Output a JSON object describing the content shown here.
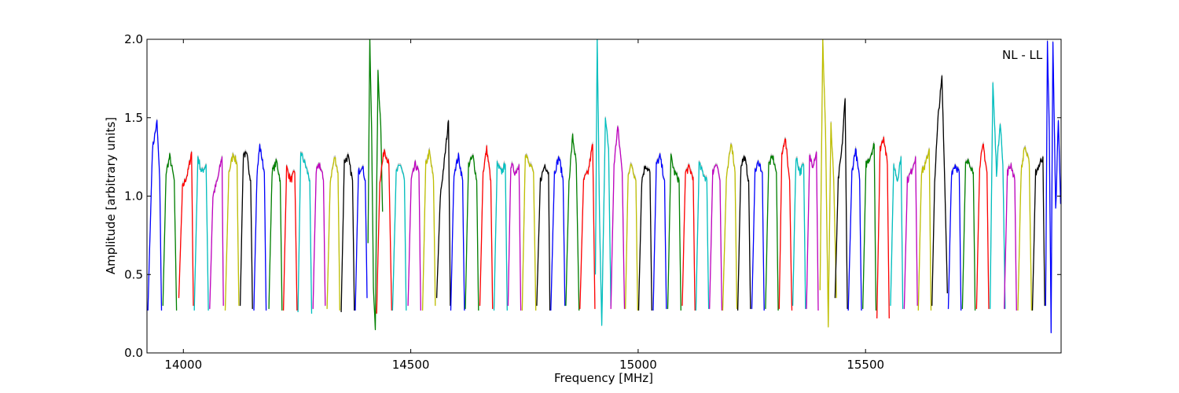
{
  "chart_data": {
    "type": "line",
    "title": "",
    "xlabel": "Frequency [MHz]",
    "ylabel": "Amplitude [arbitrary units]",
    "xlim": [
      13920,
      15930
    ],
    "ylim": [
      0.0,
      2.0
    ],
    "xticks": [
      14000,
      14500,
      15000,
      15500
    ],
    "yticks": [
      0.0,
      0.5,
      1.0,
      1.5,
      2.0
    ],
    "ytick_labels": [
      "0.0",
      "0.5",
      "1.0",
      "1.5",
      "2.0"
    ],
    "annotation": "NL - LL",
    "grid": false,
    "legend": "none",
    "subband_width_mhz": 31.25,
    "color_cycle": [
      "#0000ff",
      "#008000",
      "#ff0000",
      "#00bfbf",
      "#bf00bf",
      "#bfbf00",
      "#000000"
    ],
    "shadow_color": "#bbbbbb",
    "series": [
      {
        "color_index": 0,
        "x": [
          13922,
          13932,
          13942,
          13948,
          13952
        ],
        "y": [
          0.27,
          1.3,
          1.47,
          1.1,
          0.27
        ]
      },
      {
        "color_index": 1,
        "x": [
          13955,
          13962,
          13970,
          13980,
          13985
        ],
        "y": [
          0.3,
          1.15,
          1.25,
          1.1,
          0.27
        ]
      },
      {
        "color_index": 2,
        "x": [
          13990,
          13998,
          14010,
          14018,
          14022
        ],
        "y": [
          0.35,
          1.05,
          1.15,
          1.28,
          0.3
        ]
      },
      {
        "color_index": 3,
        "x": [
          14024,
          14032,
          14040,
          14050,
          14055
        ],
        "y": [
          0.27,
          1.25,
          1.15,
          1.2,
          0.27
        ]
      },
      {
        "color_index": 4,
        "x": [
          14058,
          14065,
          14075,
          14085,
          14088
        ],
        "y": [
          0.28,
          1.0,
          1.1,
          1.25,
          0.3
        ]
      },
      {
        "color_index": 5,
        "x": [
          14092,
          14100,
          14110,
          14118,
          14122
        ],
        "y": [
          0.27,
          1.15,
          1.27,
          1.2,
          0.3
        ]
      },
      {
        "color_index": 6,
        "x": [
          14125,
          14132,
          14140,
          14148,
          14152
        ],
        "y": [
          0.3,
          1.28,
          1.25,
          1.1,
          0.28
        ]
      },
      {
        "color_index": 0,
        "x": [
          14155,
          14162,
          14168,
          14178,
          14182
        ],
        "y": [
          0.27,
          1.15,
          1.32,
          1.15,
          0.27
        ]
      },
      {
        "color_index": 1,
        "x": [
          14188,
          14195,
          14205,
          14213,
          14217
        ],
        "y": [
          0.28,
          1.15,
          1.22,
          1.1,
          0.27
        ]
      },
      {
        "color_index": 2,
        "x": [
          14220,
          14227,
          14236,
          14245,
          14250
        ],
        "y": [
          0.27,
          1.18,
          1.1,
          1.15,
          0.27
        ]
      },
      {
        "color_index": 3,
        "x": [
          14252,
          14258,
          14268,
          14278,
          14282
        ],
        "y": [
          0.26,
          1.28,
          1.2,
          1.1,
          0.25
        ]
      },
      {
        "color_index": 4,
        "x": [
          14285,
          14292,
          14300,
          14308,
          14312
        ],
        "y": [
          0.28,
          1.15,
          1.2,
          1.1,
          0.3
        ]
      },
      {
        "color_index": 5,
        "x": [
          14316,
          14323,
          14333,
          14340,
          14344
        ],
        "y": [
          0.28,
          1.1,
          1.25,
          1.15,
          0.27
        ]
      },
      {
        "color_index": 6,
        "x": [
          14347,
          14354,
          14362,
          14372,
          14376
        ],
        "y": [
          0.26,
          1.22,
          1.25,
          1.1,
          0.27
        ]
      },
      {
        "color_index": 0,
        "x": [
          14378,
          14385,
          14393,
          14400,
          14404
        ],
        "y": [
          0.27,
          1.15,
          1.2,
          1.1,
          0.35
        ]
      },
      {
        "color_index": 1,
        "x": [
          14406,
          14410,
          14414,
          14418,
          14422,
          14428,
          14434,
          14438
        ],
        "y": [
          0.7,
          2.0,
          1.4,
          0.4,
          0.17,
          1.78,
          1.45,
          0.9
        ]
      },
      {
        "color_index": 2,
        "x": [
          14425,
          14432,
          14442,
          14452,
          14458
        ],
        "y": [
          0.25,
          1.1,
          1.3,
          1.2,
          0.27
        ]
      },
      {
        "color_index": 3,
        "x": [
          14460,
          14468,
          14478,
          14486,
          14490
        ],
        "y": [
          0.27,
          1.15,
          1.2,
          1.1,
          0.27
        ]
      },
      {
        "color_index": 4,
        "x": [
          14494,
          14501,
          14510,
          14518,
          14522
        ],
        "y": [
          0.3,
          1.1,
          1.2,
          1.15,
          0.27
        ]
      },
      {
        "color_index": 5,
        "x": [
          14526,
          14533,
          14541,
          14550,
          14554
        ],
        "y": [
          0.27,
          1.2,
          1.28,
          1.1,
          0.3
        ]
      },
      {
        "color_index": 6,
        "x": [
          14557,
          14565,
          14575,
          14583,
          14587
        ],
        "y": [
          0.35,
          1.0,
          1.25,
          1.48,
          0.3
        ]
      },
      {
        "color_index": 0,
        "x": [
          14588,
          14595,
          14605,
          14614,
          14618
        ],
        "y": [
          0.27,
          1.15,
          1.25,
          1.1,
          0.27
        ]
      },
      {
        "color_index": 1,
        "x": [
          14620,
          14627,
          14637,
          14645,
          14649
        ],
        "y": [
          0.28,
          1.2,
          1.25,
          1.1,
          0.27
        ]
      },
      {
        "color_index": 2,
        "x": [
          14652,
          14659,
          14667,
          14676,
          14680
        ],
        "y": [
          0.3,
          1.15,
          1.3,
          1.1,
          0.28
        ]
      },
      {
        "color_index": 3,
        "x": [
          14683,
          14690,
          14699,
          14708,
          14712
        ],
        "y": [
          0.27,
          1.2,
          1.15,
          1.2,
          0.27
        ]
      },
      {
        "color_index": 4,
        "x": [
          14714,
          14720,
          14730,
          14738,
          14742
        ],
        "y": [
          0.3,
          1.2,
          1.15,
          1.2,
          0.27
        ]
      },
      {
        "color_index": 5,
        "x": [
          14745,
          14752,
          14760,
          14770,
          14775
        ],
        "y": [
          0.27,
          1.28,
          1.2,
          1.15,
          0.27
        ]
      },
      {
        "color_index": 6,
        "x": [
          14777,
          14785,
          14795,
          14803,
          14806
        ],
        "y": [
          0.3,
          1.1,
          1.2,
          1.15,
          0.27
        ]
      },
      {
        "color_index": 0,
        "x": [
          14808,
          14816,
          14826,
          14835,
          14839
        ],
        "y": [
          0.27,
          1.15,
          1.25,
          1.1,
          0.3
        ]
      },
      {
        "color_index": 1,
        "x": [
          14841,
          14848,
          14856,
          14864,
          14870
        ],
        "y": [
          0.3,
          1.1,
          1.38,
          1.2,
          0.27
        ]
      },
      {
        "color_index": 2,
        "x": [
          14872,
          14880,
          14890,
          14900,
          14905
        ],
        "y": [
          0.28,
          1.1,
          1.15,
          1.33,
          0.28
        ]
      },
      {
        "color_index": 3,
        "x": [
          14906,
          14910,
          14915,
          14920,
          14928,
          14935,
          14940
        ],
        "y": [
          0.5,
          2.0,
          0.9,
          0.16,
          1.5,
          1.3,
          0.3
        ]
      },
      {
        "color_index": 4,
        "x": [
          14940,
          14947,
          14955,
          14965,
          14970
        ],
        "y": [
          0.28,
          1.2,
          1.44,
          1.15,
          0.28
        ]
      },
      {
        "color_index": 5,
        "x": [
          14972,
          14978,
          14986,
          14995,
          14999
        ],
        "y": [
          0.28,
          1.15,
          1.2,
          1.1,
          0.27
        ]
      },
      {
        "color_index": 6,
        "x": [
          15001,
          15008,
          15016,
          15026,
          15030
        ],
        "y": [
          0.27,
          1.1,
          1.2,
          1.15,
          0.27
        ]
      },
      {
        "color_index": 0,
        "x": [
          15033,
          15040,
          15048,
          15058,
          15062
        ],
        "y": [
          0.27,
          1.2,
          1.25,
          1.1,
          0.28
        ]
      },
      {
        "color_index": 1,
        "x": [
          15065,
          15072,
          15080,
          15090,
          15094
        ],
        "y": [
          0.28,
          1.25,
          1.15,
          1.1,
          0.27
        ]
      },
      {
        "color_index": 2,
        "x": [
          15097,
          15104,
          15112,
          15121,
          15125
        ],
        "y": [
          0.3,
          1.15,
          1.18,
          1.12,
          0.27
        ]
      },
      {
        "color_index": 3,
        "x": [
          15127,
          15134,
          15142,
          15151,
          15155
        ],
        "y": [
          0.27,
          1.2,
          1.15,
          1.1,
          0.28
        ]
      },
      {
        "color_index": 4,
        "x": [
          15157,
          15164,
          15172,
          15180,
          15184
        ],
        "y": [
          0.28,
          1.15,
          1.22,
          1.1,
          0.27
        ]
      },
      {
        "color_index": 5,
        "x": [
          15186,
          15194,
          15205,
          15213,
          15217
        ],
        "y": [
          0.27,
          1.1,
          1.35,
          1.15,
          0.28
        ]
      },
      {
        "color_index": 6,
        "x": [
          15219,
          15226,
          15234,
          15243,
          15247
        ],
        "y": [
          0.27,
          1.2,
          1.25,
          1.1,
          0.28
        ]
      },
      {
        "color_index": 0,
        "x": [
          15250,
          15257,
          15265,
          15273,
          15277
        ],
        "y": [
          0.28,
          1.15,
          1.22,
          1.15,
          0.27
        ]
      },
      {
        "color_index": 1,
        "x": [
          15280,
          15287,
          15296,
          15304,
          15308
        ],
        "y": [
          0.28,
          1.2,
          1.25,
          1.15,
          0.27
        ]
      },
      {
        "color_index": 2,
        "x": [
          15310,
          15316,
          15323,
          15333,
          15338
        ],
        "y": [
          0.28,
          1.25,
          1.38,
          1.1,
          0.27
        ]
      },
      {
        "color_index": 3,
        "x": [
          15340,
          15347,
          15356,
          15364,
          15368
        ],
        "y": [
          0.3,
          1.25,
          1.15,
          1.2,
          0.28
        ]
      },
      {
        "color_index": 4,
        "x": [
          15370,
          15377,
          15384,
          15392,
          15396
        ],
        "y": [
          0.28,
          1.25,
          1.2,
          1.28,
          0.27
        ]
      },
      {
        "color_index": 5,
        "x": [
          15400,
          15406,
          15412,
          15418,
          15424,
          15430,
          15436
        ],
        "y": [
          0.4,
          2.0,
          1.4,
          0.17,
          1.45,
          1.1,
          0.35
        ]
      },
      {
        "color_index": 6,
        "x": [
          15433,
          15440,
          15448,
          15455,
          15460
        ],
        "y": [
          0.35,
          1.1,
          1.3,
          1.62,
          0.28
        ]
      },
      {
        "color_index": 0,
        "x": [
          15462,
          15470,
          15478,
          15487,
          15491
        ],
        "y": [
          0.27,
          1.15,
          1.3,
          1.1,
          0.27
        ]
      },
      {
        "color_index": 1,
        "x": [
          15494,
          15501,
          15510,
          15519,
          15523
        ],
        "y": [
          0.28,
          1.2,
          1.25,
          1.33,
          0.27
        ]
      },
      {
        "color_index": 2,
        "x": [
          15525,
          15532,
          15540,
          15548,
          15552
        ],
        "y": [
          0.22,
          1.3,
          1.38,
          1.2,
          0.22
        ]
      },
      {
        "color_index": 3,
        "x": [
          15555,
          15562,
          15570,
          15578,
          15582
        ],
        "y": [
          0.3,
          1.2,
          1.1,
          1.25,
          0.28
        ]
      },
      {
        "color_index": 4,
        "x": [
          15585,
          15592,
          15600,
          15610,
          15614
        ],
        "y": [
          0.28,
          1.1,
          1.15,
          1.25,
          0.3
        ]
      },
      {
        "color_index": 5,
        "x": [
          15616,
          15623,
          15632,
          15640,
          15644
        ],
        "y": [
          0.27,
          1.15,
          1.2,
          1.3,
          0.27
        ]
      },
      {
        "color_index": 6,
        "x": [
          15646,
          15652,
          15660,
          15668,
          15674,
          15680
        ],
        "y": [
          0.3,
          1.1,
          1.52,
          1.75,
          1.1,
          0.38
        ]
      },
      {
        "color_index": 0,
        "x": [
          15682,
          15689,
          15697,
          15706,
          15710
        ],
        "y": [
          0.28,
          1.15,
          1.2,
          1.15,
          0.27
        ]
      },
      {
        "color_index": 1,
        "x": [
          15713,
          15720,
          15728,
          15737,
          15741
        ],
        "y": [
          0.28,
          1.2,
          1.22,
          1.15,
          0.27
        ]
      },
      {
        "color_index": 2,
        "x": [
          15744,
          15751,
          15759,
          15767,
          15771
        ],
        "y": [
          0.28,
          1.2,
          1.32,
          1.15,
          0.28
        ]
      },
      {
        "color_index": 3,
        "x": [
          15774,
          15780,
          15788,
          15796,
          15802,
          15807
        ],
        "y": [
          0.28,
          1.72,
          1.15,
          1.48,
          1.2,
          0.28
        ]
      },
      {
        "color_index": 4,
        "x": [
          15805,
          15812,
          15820,
          15828,
          15832
        ],
        "y": [
          0.28,
          1.15,
          1.2,
          1.1,
          0.27
        ]
      },
      {
        "color_index": 5,
        "x": [
          15835,
          15842,
          15850,
          15860,
          15865
        ],
        "y": [
          0.27,
          1.15,
          1.32,
          1.2,
          0.27
        ]
      },
      {
        "color_index": 6,
        "x": [
          15867,
          15874,
          15882,
          15890,
          15894
        ],
        "y": [
          0.27,
          1.15,
          1.2,
          1.25,
          0.3
        ]
      },
      {
        "color_index": 0,
        "x": [
          15896,
          15900,
          15904,
          15908,
          15912,
          15918,
          15924,
          15929
        ],
        "y": [
          0.3,
          2.0,
          1.4,
          0.15,
          2.0,
          0.9,
          1.48,
          0.95
        ]
      }
    ]
  }
}
